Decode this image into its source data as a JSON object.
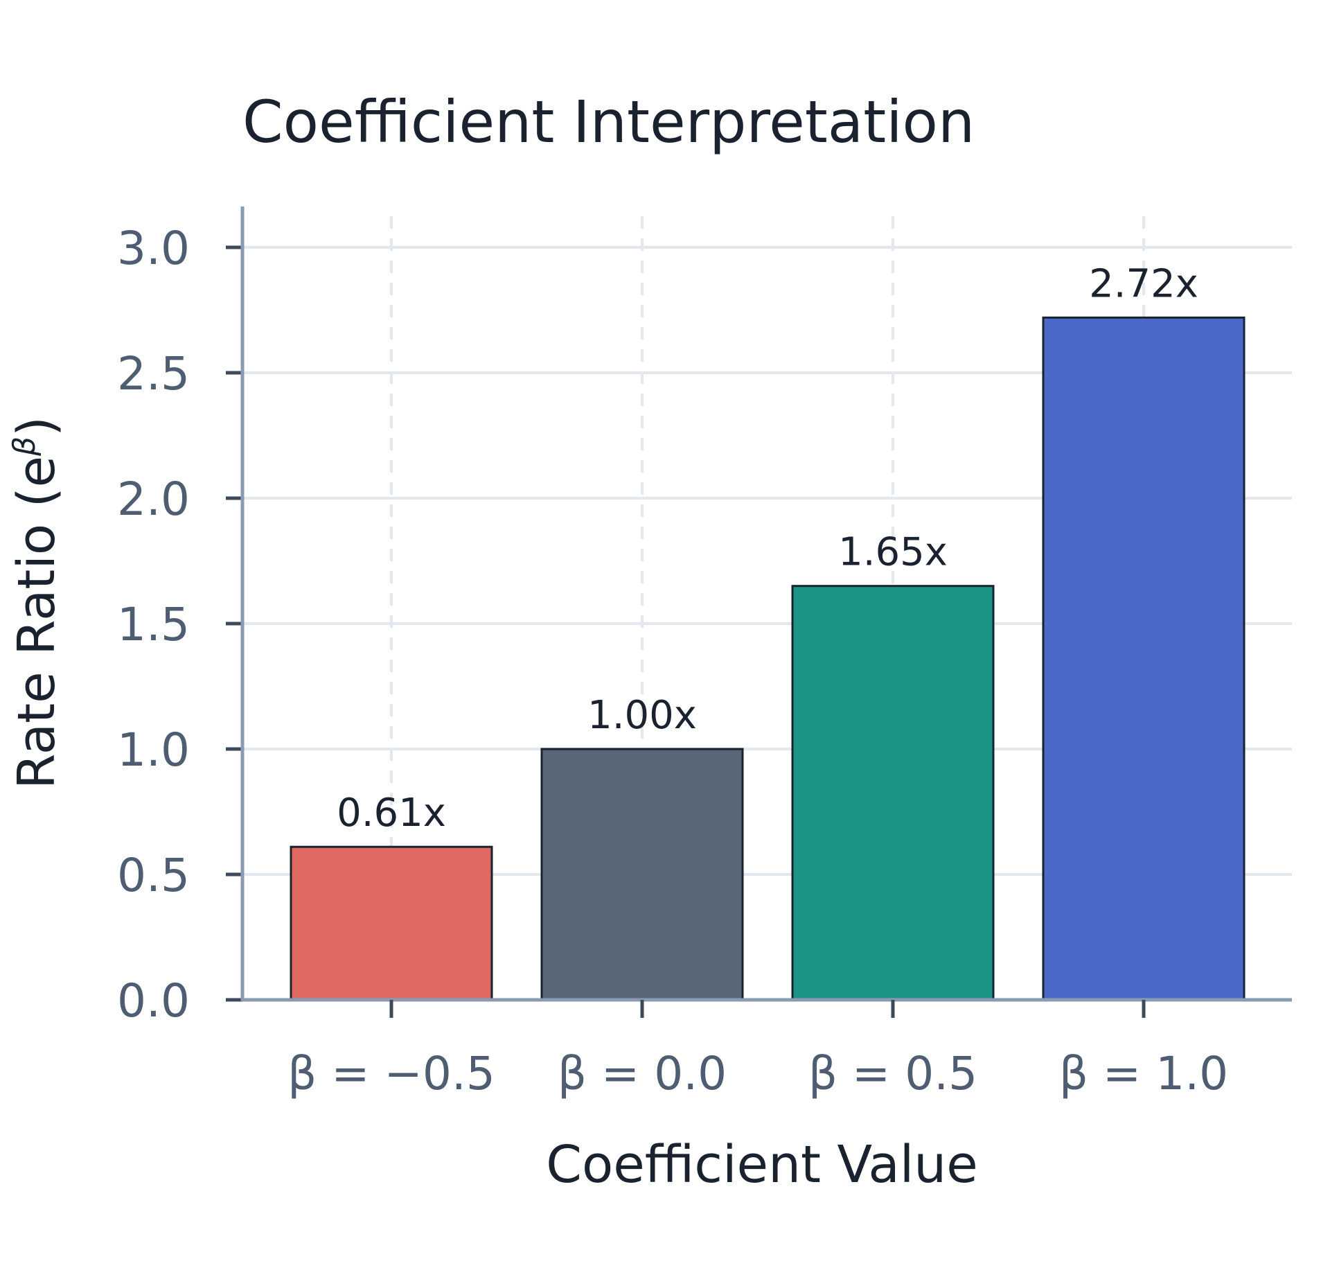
{
  "chart_data": {
    "type": "bar",
    "title": "Coefficient Interpretation",
    "xlabel": "Coefficient Value",
    "ylabel": "Rate Ratio (e",
    "ylabel_superscript": "β",
    "ylabel_suffix": ")",
    "categories": [
      "β = −0.5",
      "β = 0.0",
      "β = 0.5",
      "β = 1.0"
    ],
    "values": [
      0.61,
      1.0,
      1.65,
      2.72
    ],
    "value_labels": [
      "0.61x",
      "1.00x",
      "1.65x",
      "2.72x"
    ],
    "bar_colors": [
      "#e06a61",
      "#586677",
      "#1a9585",
      "#4a69c9"
    ],
    "bar_edge_color": "#1a2230",
    "ylim": [
      0,
      3.2
    ],
    "yticks": [
      0.0,
      0.5,
      1.0,
      1.5,
      2.0,
      2.5,
      3.0
    ],
    "ytick_labels": [
      "0.0",
      "0.5",
      "1.0",
      "1.5",
      "2.0",
      "2.5",
      "3.0"
    ],
    "grid": true,
    "grid_color": "#e3e7ee",
    "axis_color": "#8a9ab3"
  }
}
